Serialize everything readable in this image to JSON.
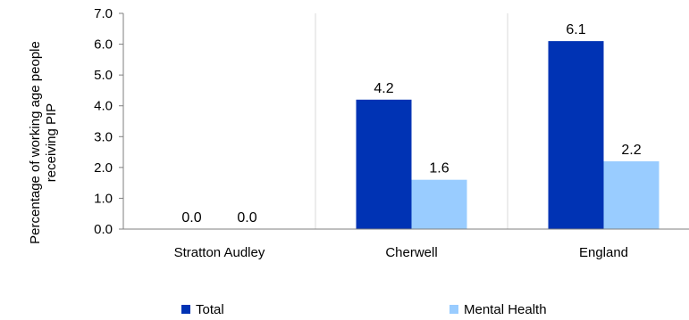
{
  "chart_data": {
    "type": "bar",
    "categories": [
      "Stratton Audley",
      "Cherwell",
      "England"
    ],
    "series": [
      {
        "name": "Total",
        "values": [
          0.0,
          4.2,
          6.1
        ],
        "color": "#0033b4"
      },
      {
        "name": "Mental Health",
        "values": [
          0.0,
          1.6,
          2.2
        ],
        "color": "#99ccff"
      }
    ],
    "ylabel_lines": [
      "Percentage of working age people",
      "receiving PIP"
    ],
    "ylim": [
      0,
      7
    ],
    "yticks": [
      "0.0",
      "1.0",
      "2.0",
      "3.0",
      "4.0",
      "5.0",
      "6.0",
      "7.0"
    ],
    "grid": "vertical-category-separators",
    "legend_position": "bottom",
    "data_labels": true
  }
}
